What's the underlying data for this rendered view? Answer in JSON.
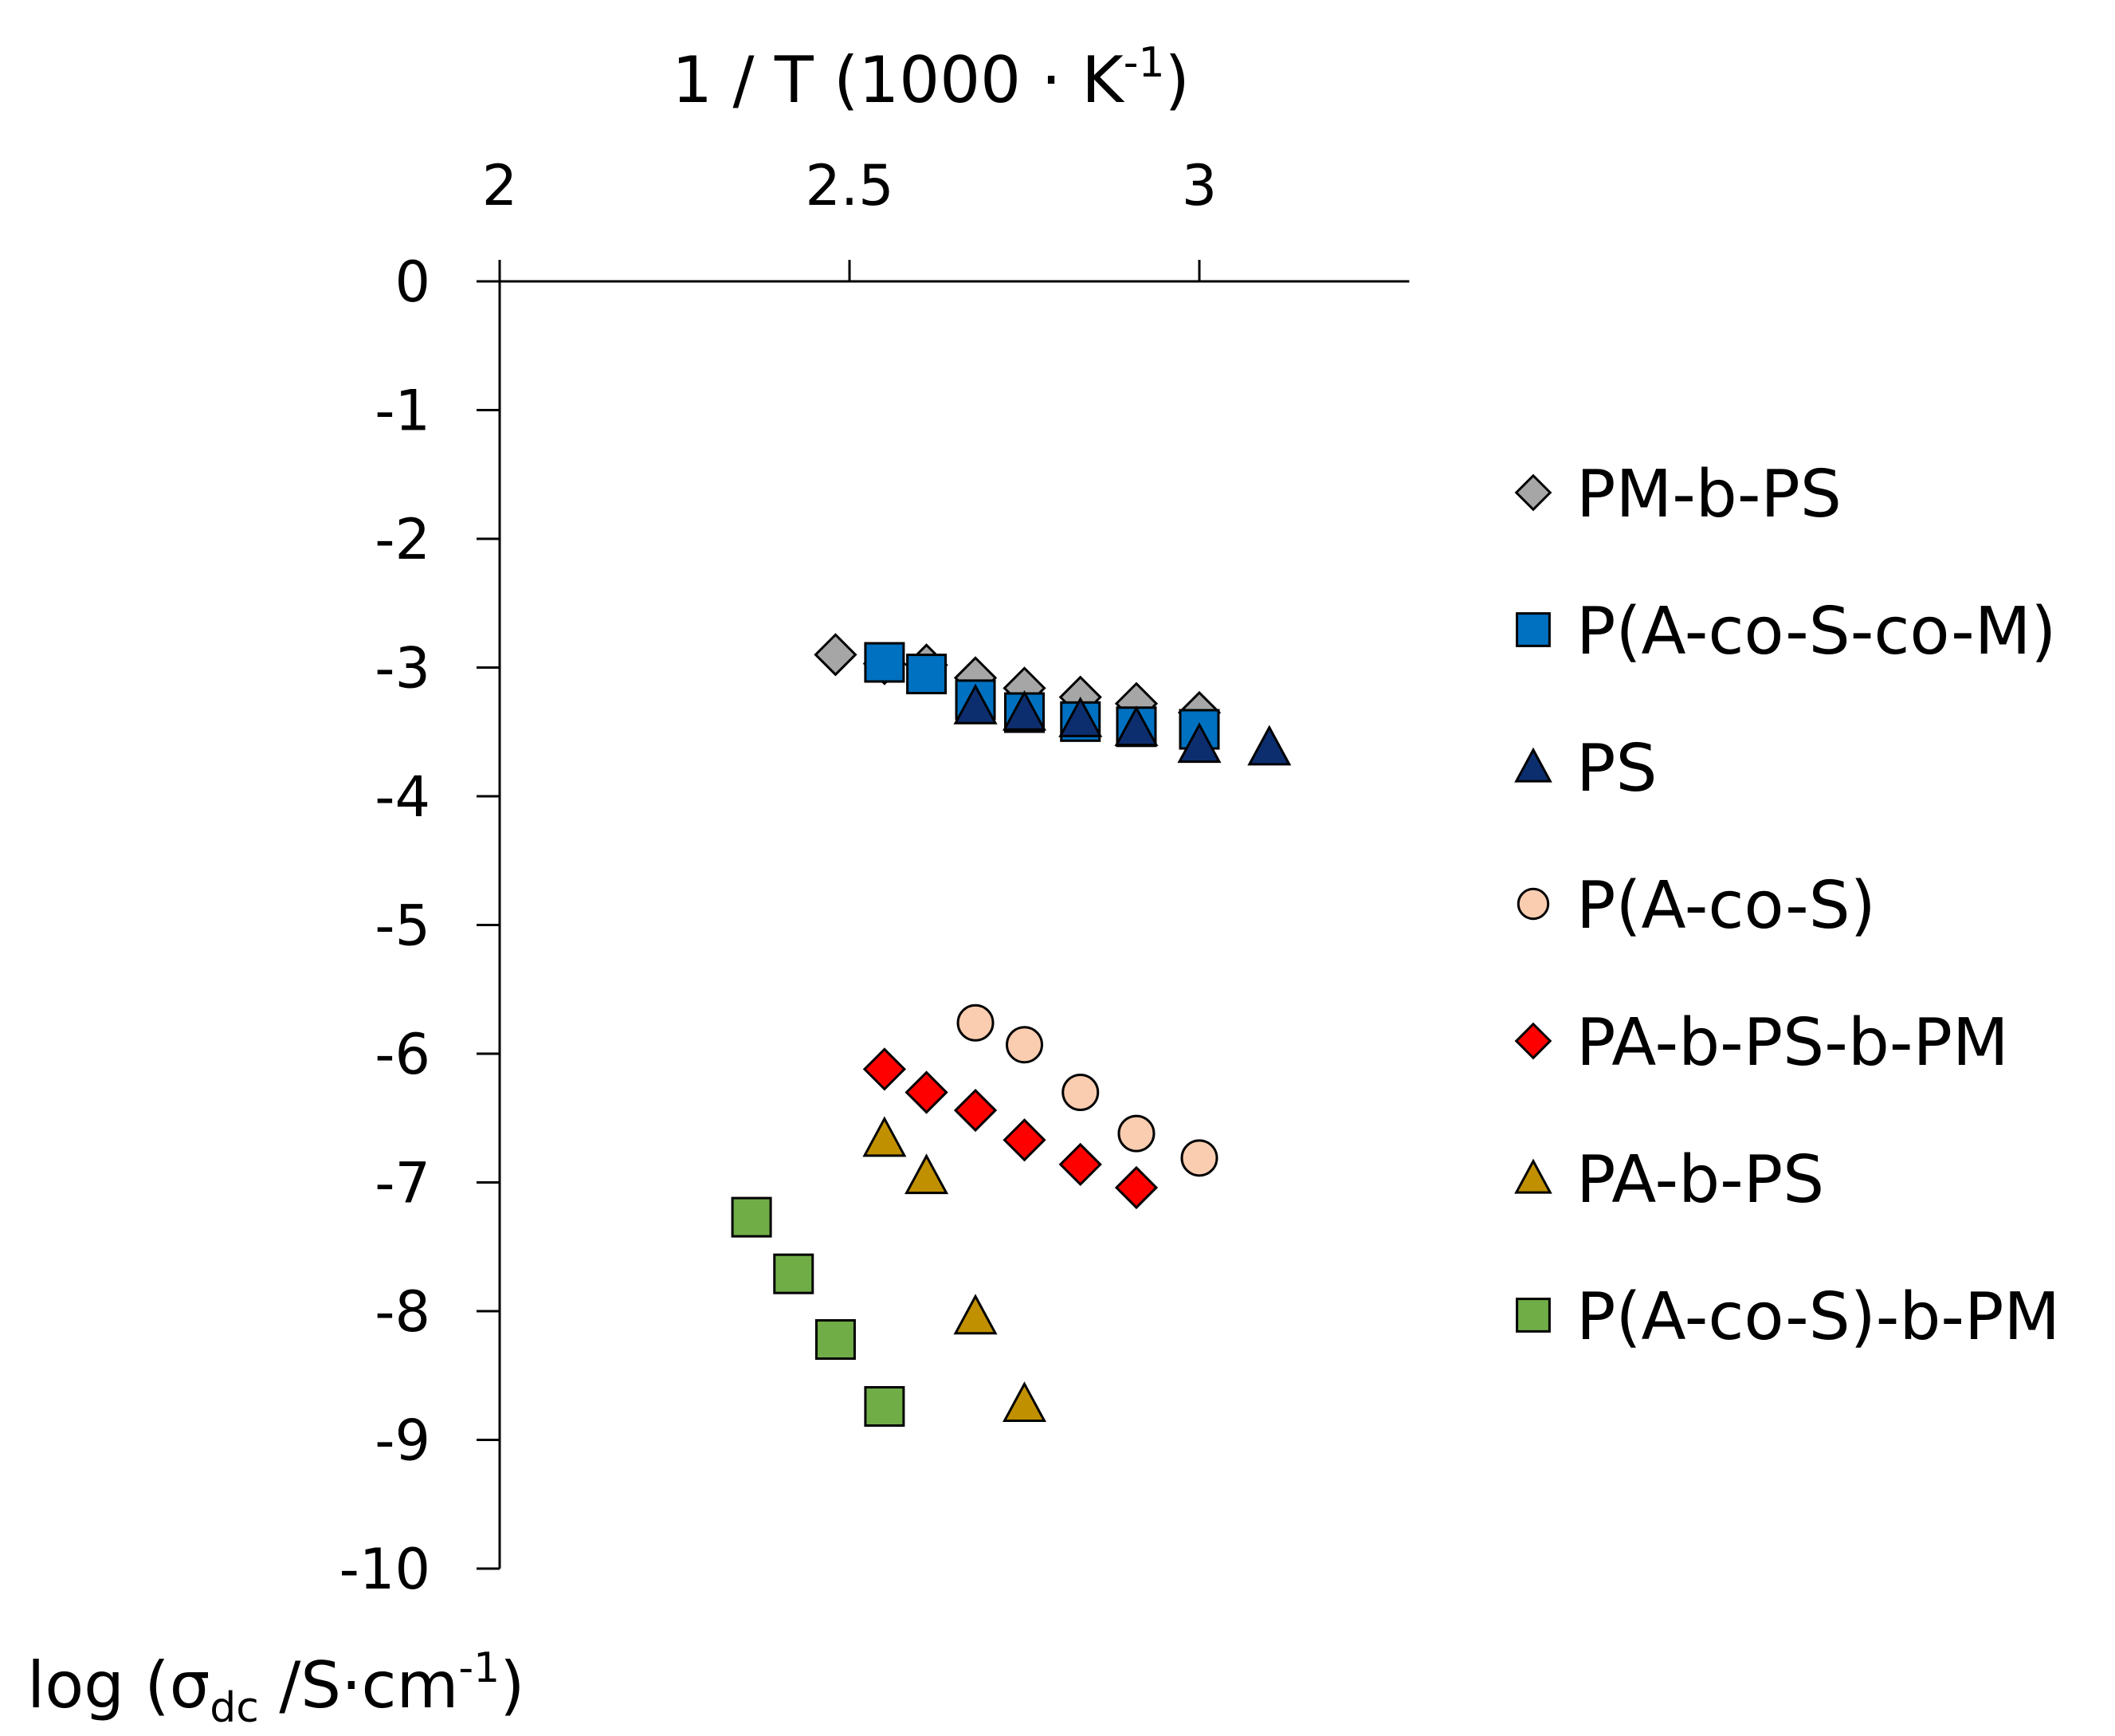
{
  "chart_data": {
    "type": "scatter",
    "title": "",
    "xlabel": {
      "prefix": "1 / T (1000 · K",
      "sup": "-1",
      "suffix": ")"
    },
    "ylabel": {
      "prefix": "log (σ",
      "sub": "dc",
      "middle": " /S·cm",
      "sup": "-1",
      "suffix": ")"
    },
    "x_axis_position": "top",
    "xlim": [
      2,
      3.3
    ],
    "ylim": [
      -10,
      0
    ],
    "x_ticks": [
      2,
      2.5,
      3
    ],
    "x_tick_labels": [
      "2",
      "2.5",
      "3"
    ],
    "y_ticks": [
      0,
      -1,
      -2,
      -3,
      -4,
      -5,
      -6,
      -7,
      -8,
      -9,
      -10
    ],
    "y_tick_labels": [
      "0",
      "-1",
      "-2",
      "-3",
      "-4",
      "-5",
      "-6",
      "-7",
      "-8",
      "-9",
      "-10"
    ],
    "grid": false,
    "legend_position": "right",
    "series": [
      {
        "name": "PM-b-PS",
        "marker": "diamond",
        "color": "#a6a6a6",
        "x": [
          2.48,
          2.55,
          2.61,
          2.68,
          2.75,
          2.83,
          2.91,
          3.0
        ],
        "y": [
          -2.9,
          -2.97,
          -2.98,
          -3.08,
          -3.16,
          -3.23,
          -3.28,
          -3.35
        ]
      },
      {
        "name": "P(A-co-S-co-M)",
        "marker": "square",
        "color": "#0070c0",
        "x": [
          2.55,
          2.61,
          2.68,
          2.75,
          2.83,
          2.91,
          3.0
        ],
        "y": [
          -2.96,
          -3.05,
          -3.25,
          -3.35,
          -3.42,
          -3.46,
          -3.48
        ]
      },
      {
        "name": "PS",
        "marker": "triangle",
        "color": "#0d2e6e",
        "x": [
          2.68,
          2.75,
          2.83,
          2.91,
          3.0,
          3.1
        ],
        "y": [
          -3.3,
          -3.35,
          -3.4,
          -3.47,
          -3.6,
          -3.62
        ]
      },
      {
        "name": "P(A-co-S)",
        "marker": "circle",
        "color": "#fbcdb0",
        "x": [
          2.68,
          2.75,
          2.83,
          2.91,
          3.0
        ],
        "y": [
          -5.76,
          -5.93,
          -6.3,
          -6.62,
          -6.81
        ]
      },
      {
        "name": "PA-b-PS-b-PM",
        "marker": "diamond",
        "color": "#ff0000",
        "x": [
          2.55,
          2.61,
          2.68,
          2.75,
          2.83,
          2.91
        ],
        "y": [
          -6.12,
          -6.3,
          -6.44,
          -6.67,
          -6.86,
          -7.04
        ]
      },
      {
        "name": "PA-b-PS",
        "marker": "triangle",
        "color": "#c09000",
        "x": [
          2.55,
          2.61,
          2.68,
          2.75
        ],
        "y": [
          -6.66,
          -6.95,
          -8.04,
          -8.72
        ]
      },
      {
        "name": "P(A-co-S)-b-PM",
        "marker": "square",
        "color": "#70ad47",
        "x": [
          2.36,
          2.42,
          2.48,
          2.55
        ],
        "y": [
          -7.27,
          -7.71,
          -8.22,
          -8.74
        ]
      }
    ]
  }
}
